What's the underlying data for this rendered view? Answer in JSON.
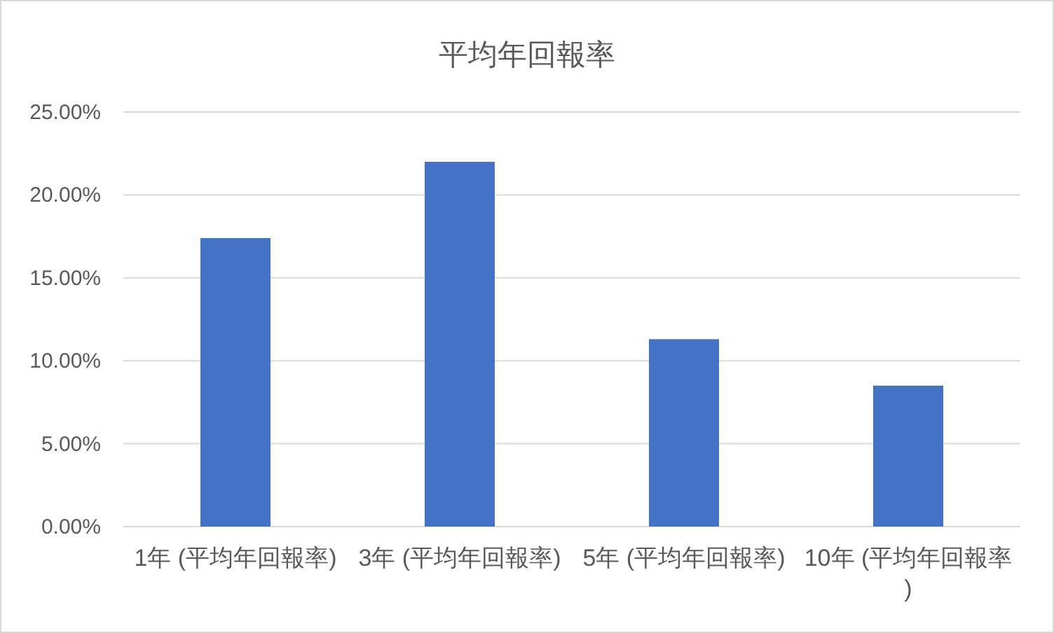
{
  "chart_data": {
    "type": "bar",
    "title": "平均年回報率",
    "categories": [
      "1年 (平均年回報率)",
      "3年 (平均年回報率)",
      "5年 (平均年回報率)",
      "10年 (平均年回報率)"
    ],
    "values": [
      17.4,
      22.0,
      11.3,
      8.5
    ],
    "color": "#4472c4",
    "ylim": [
      0,
      25
    ],
    "yticks": [
      {
        "value": 0,
        "label": "0.00%"
      },
      {
        "value": 5,
        "label": "5.00%"
      },
      {
        "value": 10,
        "label": "10.00%"
      },
      {
        "value": 15,
        "label": "15.00%"
      },
      {
        "value": 20,
        "label": "20.00%"
      },
      {
        "value": 25,
        "label": "25.00%"
      }
    ],
    "grid": "y"
  }
}
